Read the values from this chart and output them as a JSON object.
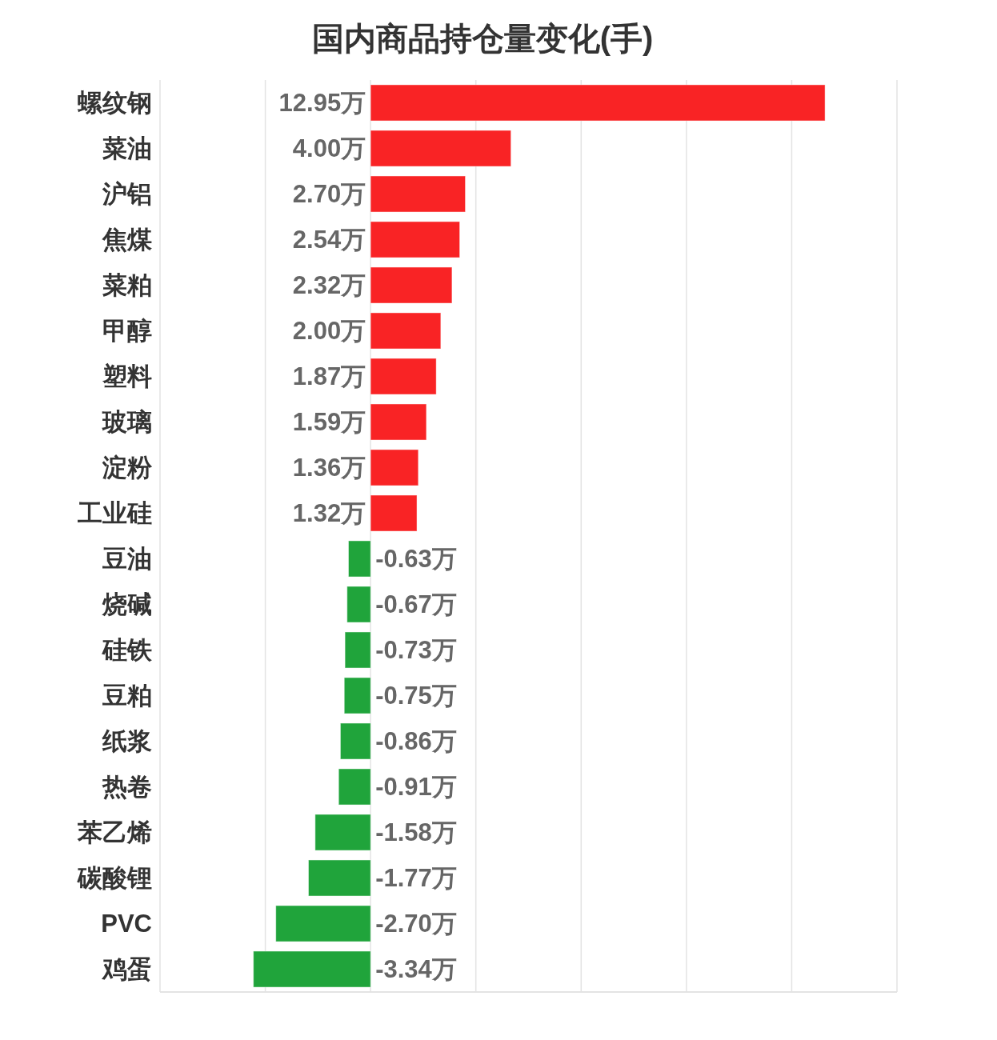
{
  "chart_data": {
    "type": "bar",
    "orientation": "horizontal",
    "title": "国内商品持仓量变化(手)",
    "categories": [
      "螺纹钢",
      "菜油",
      "沪铝",
      "焦煤",
      "菜粕",
      "甲醇",
      "塑料",
      "玻璃",
      "淀粉",
      "工业硅",
      "豆油",
      "烧碱",
      "硅铁",
      "豆粕",
      "纸浆",
      "热卷",
      "苯乙烯",
      "碳酸锂",
      "PVC",
      "鸡蛋"
    ],
    "values": [
      12.95,
      4.0,
      2.7,
      2.54,
      2.32,
      2.0,
      1.87,
      1.59,
      1.36,
      1.32,
      -0.63,
      -0.67,
      -0.73,
      -0.75,
      -0.86,
      -0.91,
      -1.58,
      -1.77,
      -2.7,
      -3.34
    ],
    "colors": [
      "#f92325",
      "#f92325",
      "#f92325",
      "#f92325",
      "#f92325",
      "#f92325",
      "#f92325",
      "#f92325",
      "#f92325",
      "#f92325",
      "#20a43b",
      "#20a43b",
      "#20a43b",
      "#20a43b",
      "#20a43b",
      "#20a43b",
      "#20a43b",
      "#20a43b",
      "#20a43b",
      "#20a43b"
    ],
    "value_labels": [
      "12.95万",
      "4.00万",
      "2.70万",
      "2.54万",
      "2.32万",
      "2.00万",
      "1.87万",
      "1.59万",
      "1.36万",
      "1.32万",
      "-0.63万",
      "-0.67万",
      "-0.73万",
      "-0.75万",
      "-0.86万",
      "-0.91万",
      "-1.58万",
      "-1.77万",
      "-2.70万",
      "-3.34万"
    ],
    "xlim": [
      -6,
      15
    ],
    "xticks": [
      {
        "value": -6,
        "label": null
      },
      {
        "value": -3,
        "label": null
      },
      {
        "value": 0,
        "label": null
      },
      {
        "value": 3,
        "label": null
      },
      {
        "value": 6,
        "label": null
      },
      {
        "value": 9,
        "label": null
      },
      {
        "value": 12,
        "label": null
      },
      {
        "value": 15,
        "label": null
      }
    ],
    "grid": "x",
    "tick_labels": "y"
  }
}
